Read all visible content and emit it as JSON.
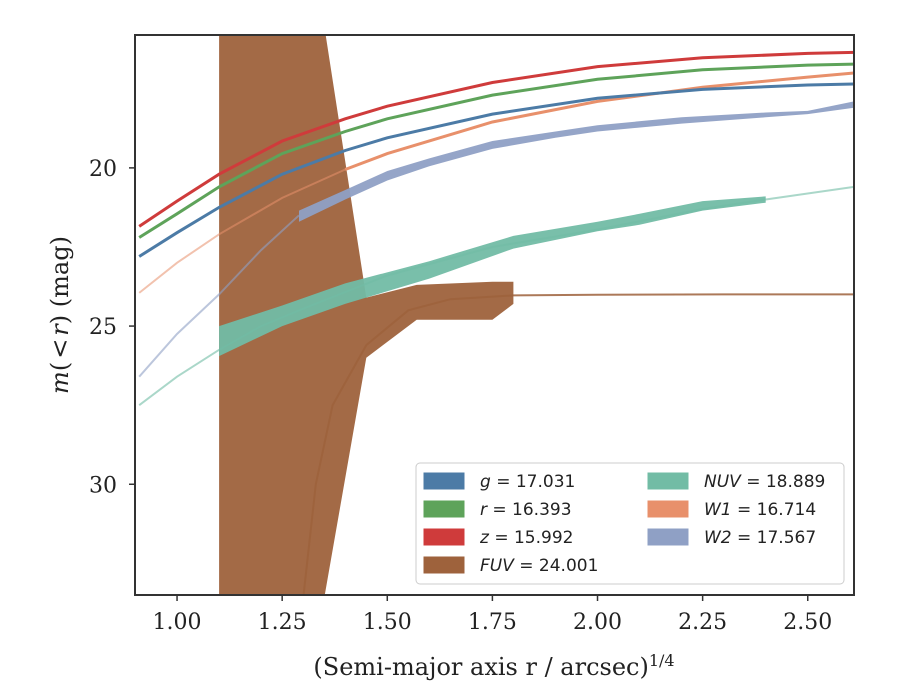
{
  "chart_data": {
    "type": "line",
    "xlabel": "(Semi-major axis r / arcsec)",
    "xlabel_exponent": "1/4",
    "ylabel_parts": [
      "m",
      "(",
      "<",
      "r",
      ") (mag)"
    ],
    "xlim": [
      0.9,
      2.61
    ],
    "ylim": [
      33.5,
      15.8
    ],
    "y_inverted": true,
    "xticks": [
      1.0,
      1.25,
      1.5,
      1.75,
      2.0,
      2.25,
      2.5
    ],
    "xtick_labels": [
      "1.00",
      "1.25",
      "1.50",
      "1.75",
      "2.00",
      "2.25",
      "2.50"
    ],
    "yticks": [
      20,
      25,
      30
    ],
    "ytick_labels": [
      "20",
      "25",
      "30"
    ],
    "grid": false,
    "legend_location": "lower-right",
    "legend_columns": 2,
    "series": [
      {
        "id": "g",
        "label_var": "g",
        "label_value": "17.031",
        "color": "#4c7ba6",
        "kind": "line",
        "x": [
          0.91,
          1.0,
          1.1,
          1.25,
          1.4,
          1.5,
          1.75,
          2.0,
          2.25,
          2.5,
          2.61
        ],
        "y": [
          22.8,
          22.05,
          21.25,
          20.2,
          19.45,
          19.05,
          18.3,
          17.8,
          17.52,
          17.38,
          17.35
        ]
      },
      {
        "id": "r",
        "label_var": "r",
        "label_value": "16.393",
        "color": "#5ea35a",
        "kind": "line",
        "x": [
          0.91,
          1.0,
          1.1,
          1.25,
          1.4,
          1.5,
          1.75,
          2.0,
          2.25,
          2.5,
          2.61
        ],
        "y": [
          22.2,
          21.45,
          20.6,
          19.55,
          18.85,
          18.45,
          17.7,
          17.2,
          16.9,
          16.75,
          16.72
        ]
      },
      {
        "id": "z",
        "label_var": "z",
        "label_value": "15.992",
        "color": "#cf3b3b",
        "kind": "line",
        "x": [
          0.91,
          1.0,
          1.1,
          1.25,
          1.4,
          1.5,
          1.75,
          2.0,
          2.25,
          2.5,
          2.61
        ],
        "y": [
          21.85,
          21.05,
          20.2,
          19.15,
          18.45,
          18.05,
          17.3,
          16.8,
          16.52,
          16.38,
          16.35
        ]
      },
      {
        "id": "FUV",
        "label_var": "FUV",
        "label_value": "24.001",
        "color": "#9e623c",
        "kind": "band",
        "x": [
          1.1,
          1.2,
          1.35,
          1.45,
          1.57,
          1.75,
          1.8
        ],
        "y_low": [
          15.5,
          15.5,
          15.5,
          24.1,
          23.7,
          23.6,
          23.6
        ],
        "y_high": [
          33.6,
          33.6,
          33.6,
          26.0,
          24.8,
          24.8,
          24.3
        ],
        "line_x": [
          1.3,
          1.33,
          1.37,
          1.45,
          1.55,
          1.65,
          1.8,
          2.0,
          2.3,
          2.61
        ],
        "line_y": [
          33.6,
          30.0,
          27.5,
          25.6,
          24.5,
          24.15,
          24.03,
          24.01,
          24.0,
          24.0
        ]
      },
      {
        "id": "NUV",
        "label_var": "NUV",
        "label_value": "18.889",
        "color": "#72bca5",
        "kind": "band",
        "x": [
          1.1,
          1.25,
          1.4,
          1.6,
          1.8,
          2.0,
          2.1,
          2.25,
          2.4
        ],
        "y_low": [
          25.0,
          24.35,
          23.65,
          22.95,
          22.15,
          21.7,
          21.45,
          21.05,
          20.9
        ],
        "y_high": [
          25.95,
          25.0,
          24.3,
          23.5,
          22.55,
          22.0,
          21.8,
          21.35,
          21.1
        ],
        "line_x": [
          0.91,
          1.0,
          1.1,
          1.2,
          1.3,
          1.5,
          1.75,
          2.0,
          2.25,
          2.4,
          2.61
        ],
        "line_y": [
          27.5,
          26.6,
          25.75,
          25.0,
          24.45,
          23.4,
          22.5,
          21.95,
          21.3,
          21.0,
          20.6
        ]
      },
      {
        "id": "W1",
        "label_var": "W1",
        "label_value": "16.714",
        "color": "#e8906b",
        "kind": "line",
        "x": [
          0.91,
          1.0,
          1.1,
          1.25,
          1.4,
          1.5,
          1.75,
          2.0,
          2.25,
          2.5,
          2.61
        ],
        "y": [
          23.95,
          23.0,
          22.1,
          20.95,
          20.05,
          19.55,
          18.55,
          17.9,
          17.45,
          17.13,
          17.0
        ]
      },
      {
        "id": "W2",
        "label_var": "W2",
        "label_value": "17.567",
        "color": "#8fa0c5",
        "kind": "band",
        "x": [
          1.29,
          1.4,
          1.5,
          1.6,
          1.75,
          1.9,
          2.0,
          2.2,
          2.4,
          2.5,
          2.61
        ],
        "y_low": [
          21.35,
          20.7,
          20.1,
          19.7,
          19.15,
          18.85,
          18.65,
          18.4,
          18.25,
          18.2,
          17.9
        ],
        "y_high": [
          21.7,
          21.0,
          20.4,
          19.95,
          19.4,
          19.05,
          18.85,
          18.6,
          18.4,
          18.3,
          18.1
        ],
        "line_x": [
          0.91,
          1.0,
          1.1,
          1.2,
          1.29
        ],
        "line_y": [
          26.6,
          25.25,
          24.0,
          22.6,
          21.5
        ]
      }
    ]
  }
}
